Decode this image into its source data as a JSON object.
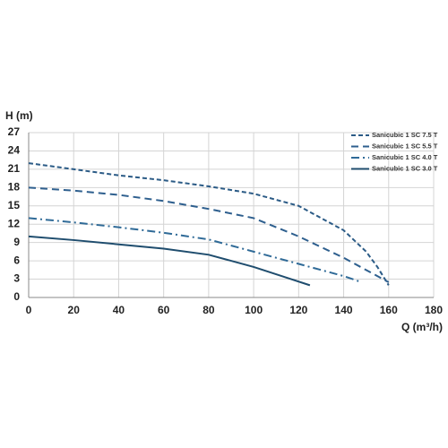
{
  "chart_data": {
    "type": "line",
    "y_label": "H (m)",
    "x_label": "Q (m³/h)",
    "xlim": [
      0,
      180
    ],
    "xticks": [
      0,
      20,
      40,
      60,
      80,
      100,
      120,
      140,
      160,
      180
    ],
    "ylim": [
      0,
      27
    ],
    "yticks": [
      0,
      3,
      6,
      9,
      12,
      15,
      18,
      21,
      24,
      27
    ],
    "grid": true,
    "legend": "upper right",
    "series": [
      {
        "name": "Sanicubic 1 SC 7.5 T",
        "color": "#2b5b86",
        "style": "dashed",
        "x": [
          0,
          20,
          40,
          60,
          80,
          100,
          120,
          140,
          150,
          155,
          160
        ],
        "values": [
          22,
          21,
          20,
          19.2,
          18.2,
          17,
          15,
          11,
          7.5,
          5,
          2
        ]
      },
      {
        "name": "Sanicubic 1 SC 5.5 T",
        "color": "#2e5f8e",
        "style": "long-dashed",
        "x": [
          0,
          20,
          40,
          60,
          80,
          100,
          120,
          140,
          150,
          160
        ],
        "values": [
          18,
          17.5,
          16.8,
          15.8,
          14.5,
          13,
          10,
          6.5,
          4.5,
          2.5
        ]
      },
      {
        "name": "Sanicubic 1 SC 4.0 T",
        "color": "#2f6a97",
        "style": "dash-dot",
        "x": [
          0,
          20,
          40,
          60,
          80,
          100,
          120,
          140,
          148
        ],
        "values": [
          13,
          12.3,
          11.5,
          10.6,
          9.5,
          7.5,
          5.5,
          3.5,
          2.5
        ]
      },
      {
        "name": "Sanicubic 1 SC 3.0 T",
        "color": "#1f4d6e",
        "style": "solid",
        "x": [
          0,
          20,
          40,
          60,
          80,
          100,
          115,
          125
        ],
        "values": [
          10,
          9.4,
          8.7,
          8,
          7,
          5,
          3.2,
          2
        ]
      }
    ]
  }
}
